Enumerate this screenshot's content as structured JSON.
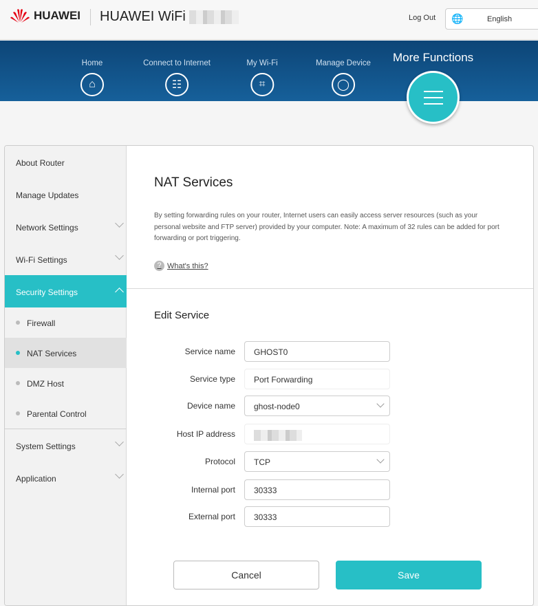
{
  "header": {
    "brand": "HUAWEI",
    "product": "HUAWEI WiFi",
    "logout": "Log Out",
    "language": "English"
  },
  "nav": {
    "items": [
      {
        "label": "Home",
        "icon": "home-icon"
      },
      {
        "label": "Connect to Internet",
        "icon": "globe-icon"
      },
      {
        "label": "My Wi-Fi",
        "icon": "wifi-icon"
      },
      {
        "label": "Manage Device",
        "icon": "user-icon"
      }
    ],
    "more": "More Functions"
  },
  "sidebar": {
    "items": [
      "About Router",
      "Manage Updates",
      "Network Settings",
      "Wi-Fi Settings",
      "Security Settings",
      "System Settings",
      "Application"
    ],
    "sub": [
      "Firewall",
      "NAT Services",
      "DMZ Host",
      "Parental Control"
    ]
  },
  "main": {
    "title": "NAT Services",
    "description": "By setting forwarding rules on your router, Internet users can easily access server resources (such as your personal website and FTP server) provided by your computer. Note: A maximum of 32 rules can be added for port forwarding or port triggering.",
    "help": "What's this?",
    "section": "Edit Service",
    "form": [
      {
        "label": "Service name",
        "value": "GHOST0"
      },
      {
        "label": "Service type",
        "value": "Port Forwarding"
      },
      {
        "label": "Device name",
        "value": "ghost-node0"
      },
      {
        "label": "Host IP address",
        "value": ""
      },
      {
        "label": "Protocol",
        "value": "TCP"
      },
      {
        "label": "Internal port",
        "value": "30333"
      },
      {
        "label": "External port",
        "value": "30333"
      }
    ],
    "cancel": "Cancel",
    "save": "Save"
  },
  "colors": {
    "accent": "#27bfc6",
    "band": "#0d4577"
  }
}
